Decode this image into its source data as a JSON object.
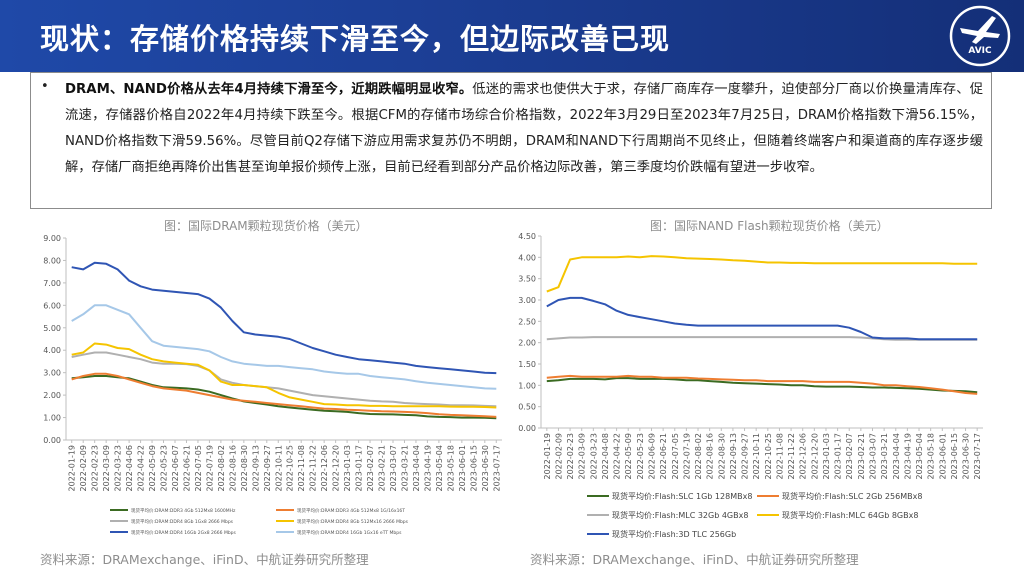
{
  "header": {
    "title": "现状：存储价格持续下滑至今，但边际改善已现",
    "logo_text": "AVIC"
  },
  "summary": {
    "bullet": "•",
    "bold": "DRAM、NAND价格从去年4月持续下滑至今，近期跌幅明显收窄。",
    "text": "低迷的需求也使供大于求，存储厂商库存一度攀升，迫使部分厂商以价换量清库存、促流速，存储器价格自2022年4月持续下跌至今。根据CFM的存储市场综合价格指数，2022年3月29日至2023年7月25日，DRAM价格指数下滑56.15%，NAND价格指数下滑59.56%。尽管目前Q2存储下游应用需求复苏仍不明朗，DRAM和NAND下行周期尚不见终止，但随着终端客户和渠道商的库存逐步缓解，存储厂商拒绝再降价出售甚至询单报价频传上涨，目前已经看到部分产品价格边际改善，第三季度均价跌幅有望进一步收窄。"
  },
  "sources": {
    "left": "资料来源：DRAMexchange、iFinD、中航证券研究所整理",
    "right": "资料来源：DRAMexchange、iFinD、中航证券研究所整理"
  },
  "colors": {
    "header": "#1c3f96",
    "gold": "#f5c400",
    "blue": "#2f55b4",
    "orange": "#ee7d31",
    "gray": "#b0b0b0",
    "green": "#3b6b22",
    "lightblue": "#a6c8e8"
  },
  "chart_data": [
    {
      "type": "line",
      "title": "图：国际DRAM颗粒现货价格（美元）",
      "ylim": [
        0,
        9
      ],
      "yticks": [
        "0.00",
        "1.00",
        "2.00",
        "3.00",
        "4.00",
        "5.00",
        "6.00",
        "7.00",
        "8.00",
        "9.00"
      ],
      "categories": [
        "2022-01-19",
        "2022-02-09",
        "2022-02-23",
        "2022-03-09",
        "2022-03-23",
        "2022-04-06",
        "2022-04-22",
        "2022-05-09",
        "2022-05-23",
        "2022-06-07",
        "2022-06-21",
        "2022-07-05",
        "2022-07-19",
        "2022-08-02",
        "2022-08-16",
        "2022-08-30",
        "2022-09-13",
        "2022-09-27",
        "2022-10-11",
        "2022-10-25",
        "2022-11-08",
        "2022-11-22",
        "2022-12-06",
        "2022-12-20",
        "2023-01-03",
        "2023-01-17",
        "2023-02-07",
        "2023-02-21",
        "2023-03-07",
        "2023-03-21",
        "2023-04-04",
        "2023-04-19",
        "2023-05-04",
        "2023-05-18",
        "2023-06-01",
        "2023-06-15",
        "2023-06-30",
        "2023-07-17"
      ],
      "series": [
        {
          "name": "现货平均价:DRAM:DDR3 4Gb 512Mx8 1600MHz",
          "color": "#3b6b22",
          "values": [
            2.75,
            2.8,
            2.85,
            2.85,
            2.8,
            2.75,
            2.6,
            2.45,
            2.35,
            2.33,
            2.3,
            2.25,
            2.15,
            2.0,
            1.85,
            1.72,
            1.65,
            1.58,
            1.5,
            1.45,
            1.4,
            1.35,
            1.3,
            1.28,
            1.25,
            1.2,
            1.16,
            1.15,
            1.14,
            1.12,
            1.1,
            1.05,
            1.03,
            1.02,
            1.0,
            1.0,
            0.99,
            0.97
          ]
        },
        {
          "name": "现货平均价:DRAM:DDR3 4Gb 512Mx8 1G/16x16T",
          "color": "#ee7d31",
          "values": [
            2.7,
            2.85,
            2.95,
            2.95,
            2.85,
            2.7,
            2.55,
            2.4,
            2.3,
            2.25,
            2.2,
            2.1,
            2.0,
            1.9,
            1.8,
            1.75,
            1.7,
            1.65,
            1.6,
            1.55,
            1.5,
            1.45,
            1.4,
            1.38,
            1.35,
            1.33,
            1.3,
            1.28,
            1.27,
            1.25,
            1.23,
            1.2,
            1.15,
            1.12,
            1.1,
            1.08,
            1.06,
            1.03
          ]
        },
        {
          "name": "现货平均价:DRAM:DDR4 8Gb 1Gx8 2666 Mbps",
          "color": "#b0b0b0",
          "values": [
            3.7,
            3.8,
            3.9,
            3.9,
            3.8,
            3.7,
            3.6,
            3.45,
            3.4,
            3.4,
            3.38,
            3.3,
            3.1,
            2.7,
            2.55,
            2.45,
            2.4,
            2.35,
            2.3,
            2.2,
            2.1,
            2.0,
            1.95,
            1.9,
            1.85,
            1.8,
            1.75,
            1.72,
            1.7,
            1.65,
            1.62,
            1.6,
            1.58,
            1.55,
            1.55,
            1.54,
            1.52,
            1.5
          ]
        },
        {
          "name": "现货平均价:DRAM:DDR4 8Gb 512Mx16 2666 Mbps",
          "color": "#f5c400",
          "values": [
            3.8,
            3.9,
            4.3,
            4.25,
            4.1,
            4.05,
            3.8,
            3.6,
            3.5,
            3.45,
            3.4,
            3.35,
            3.1,
            2.6,
            2.45,
            2.45,
            2.4,
            2.35,
            2.1,
            1.9,
            1.8,
            1.7,
            1.6,
            1.58,
            1.55,
            1.55,
            1.52,
            1.52,
            1.5,
            1.5,
            1.5,
            1.5,
            1.5,
            1.49,
            1.48,
            1.48,
            1.47,
            1.45
          ]
        },
        {
          "name": "现货平均价:DRAM:DDR4 16Gb 2Gx8 2666 Mbps",
          "color": "#2f55b4",
          "values": [
            7.7,
            7.6,
            7.9,
            7.85,
            7.6,
            7.1,
            6.85,
            6.7,
            6.65,
            6.6,
            6.55,
            6.5,
            6.3,
            5.9,
            5.3,
            4.8,
            4.7,
            4.65,
            4.6,
            4.5,
            4.3,
            4.1,
            3.95,
            3.8,
            3.7,
            3.6,
            3.55,
            3.5,
            3.45,
            3.4,
            3.3,
            3.25,
            3.2,
            3.15,
            3.1,
            3.05,
            3.0,
            2.98
          ]
        },
        {
          "name": "现货平均价:DRAM:DDR4 16Gb 1Gx16 eTT Mbps",
          "color": "#a6c8e8",
          "values": [
            5.3,
            5.6,
            6.0,
            6.0,
            5.8,
            5.6,
            5.0,
            4.4,
            4.2,
            4.15,
            4.1,
            4.05,
            3.95,
            3.7,
            3.5,
            3.4,
            3.35,
            3.3,
            3.3,
            3.25,
            3.2,
            3.15,
            3.05,
            3.0,
            2.95,
            2.95,
            2.85,
            2.8,
            2.75,
            2.7,
            2.62,
            2.55,
            2.5,
            2.45,
            2.4,
            2.35,
            2.3,
            2.28
          ]
        }
      ]
    },
    {
      "type": "line",
      "title": "图：国际NAND Flash颗粒现货价格（美元）",
      "ylim": [
        0,
        4.5
      ],
      "yticks": [
        "0.00",
        "0.50",
        "1.00",
        "1.50",
        "2.00",
        "2.50",
        "3.00",
        "3.50",
        "4.00",
        "4.50"
      ],
      "categories": [
        "2022-01-19",
        "2022-02-09",
        "2022-02-23",
        "2022-03-09",
        "2022-03-23",
        "2022-04-08",
        "2022-04-22",
        "2022-05-09",
        "2022-05-23",
        "2022-06-09",
        "2022-06-21",
        "2022-07-05",
        "2022-07-19",
        "2022-08-02",
        "2022-08-16",
        "2022-08-30",
        "2022-09-13",
        "2022-09-27",
        "2022-10-11",
        "2022-10-25",
        "2022-11-08",
        "2022-11-22",
        "2022-12-06",
        "2022-12-20",
        "2023-01-03",
        "2023-01-17",
        "2023-02-07",
        "2023-02-21",
        "2023-03-07",
        "2023-03-21",
        "2023-04-04",
        "2023-04-19",
        "2023-05-04",
        "2023-05-18",
        "2023-06-01",
        "2023-06-15",
        "2023-06-30",
        "2023-07-17"
      ],
      "series": [
        {
          "name": "现货平均价:Flash:SLC 1Gb 128MBx8",
          "color": "#3b6b22",
          "values": [
            1.1,
            1.12,
            1.15,
            1.15,
            1.15,
            1.14,
            1.17,
            1.17,
            1.15,
            1.15,
            1.15,
            1.14,
            1.12,
            1.12,
            1.1,
            1.08,
            1.06,
            1.05,
            1.04,
            1.03,
            1.02,
            1.0,
            1.0,
            0.98,
            0.97,
            0.97,
            0.97,
            0.96,
            0.95,
            0.95,
            0.94,
            0.93,
            0.92,
            0.9,
            0.88,
            0.87,
            0.86,
            0.84
          ]
        },
        {
          "name": "现货平均价:Flash:SLC 2Gb 256MBx8",
          "color": "#ee7d31",
          "values": [
            1.18,
            1.2,
            1.22,
            1.2,
            1.2,
            1.2,
            1.2,
            1.22,
            1.2,
            1.2,
            1.18,
            1.18,
            1.18,
            1.16,
            1.15,
            1.14,
            1.13,
            1.12,
            1.12,
            1.1,
            1.1,
            1.1,
            1.1,
            1.08,
            1.08,
            1.08,
            1.08,
            1.06,
            1.04,
            1.0,
            1.0,
            0.98,
            0.96,
            0.93,
            0.9,
            0.86,
            0.82,
            0.8
          ]
        },
        {
          "name": "现货平均价:Flash:MLC 32Gb 4GBx8",
          "color": "#b0b0b0",
          "values": [
            2.08,
            2.1,
            2.12,
            2.12,
            2.13,
            2.13,
            2.13,
            2.13,
            2.13,
            2.13,
            2.13,
            2.13,
            2.13,
            2.13,
            2.13,
            2.13,
            2.13,
            2.13,
            2.13,
            2.13,
            2.13,
            2.13,
            2.13,
            2.13,
            2.13,
            2.13,
            2.13,
            2.12,
            2.1,
            2.08,
            2.07,
            2.07,
            2.07,
            2.07,
            2.07,
            2.07,
            2.07,
            2.07
          ]
        },
        {
          "name": "现货平均价:Flash:MLC 64Gb 8GBx8",
          "color": "#f5c400",
          "values": [
            3.2,
            3.3,
            3.95,
            4.0,
            4.0,
            4.0,
            4.0,
            4.02,
            4.0,
            4.03,
            4.02,
            4.0,
            3.98,
            3.97,
            3.96,
            3.95,
            3.93,
            3.92,
            3.9,
            3.88,
            3.88,
            3.87,
            3.87,
            3.86,
            3.86,
            3.86,
            3.86,
            3.86,
            3.86,
            3.86,
            3.86,
            3.86,
            3.86,
            3.86,
            3.86,
            3.85,
            3.85,
            3.85
          ]
        },
        {
          "name": "现货平均价:Flash:3D TLC 256Gb",
          "color": "#2f55b4",
          "values": [
            2.85,
            3.0,
            3.05,
            3.05,
            2.98,
            2.9,
            2.75,
            2.65,
            2.6,
            2.55,
            2.5,
            2.45,
            2.42,
            2.4,
            2.4,
            2.4,
            2.4,
            2.4,
            2.4,
            2.4,
            2.4,
            2.4,
            2.4,
            2.4,
            2.4,
            2.4,
            2.35,
            2.25,
            2.12,
            2.1,
            2.1,
            2.1,
            2.08,
            2.08,
            2.08,
            2.08,
            2.08,
            2.08
          ]
        }
      ]
    }
  ]
}
